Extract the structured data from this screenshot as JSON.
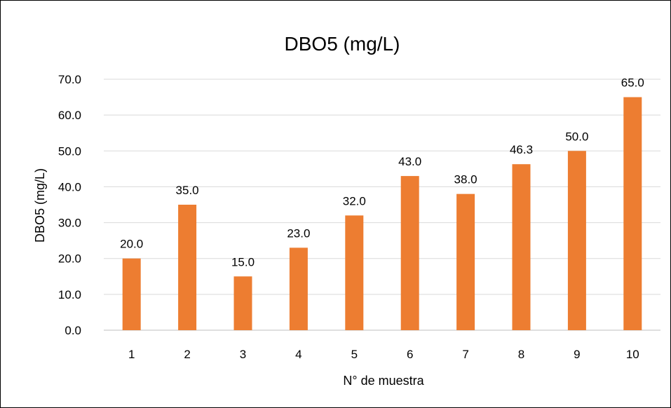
{
  "chart_data": {
    "type": "bar",
    "title": "DBO5 (mg/L)",
    "xlabel": "N° de muestra",
    "ylabel": "DBO5 (mg/L)",
    "categories": [
      "1",
      "2",
      "3",
      "4",
      "5",
      "6",
      "7",
      "8",
      "9",
      "10"
    ],
    "values": [
      20.0,
      35.0,
      15.0,
      23.0,
      32.0,
      43.0,
      38.0,
      46.3,
      50.0,
      65.0
    ],
    "data_labels": [
      "20.0",
      "35.0",
      "15.0",
      "23.0",
      "32.0",
      "43.0",
      "38.0",
      "46.3",
      "50.0",
      "65.0"
    ],
    "y_ticks": [
      "0.0",
      "10.0",
      "20.0",
      "30.0",
      "40.0",
      "50.0",
      "60.0",
      "70.0"
    ],
    "ylim": [
      0,
      70
    ],
    "grid": true,
    "legend": "none",
    "bar_color": "#ED7D31"
  }
}
